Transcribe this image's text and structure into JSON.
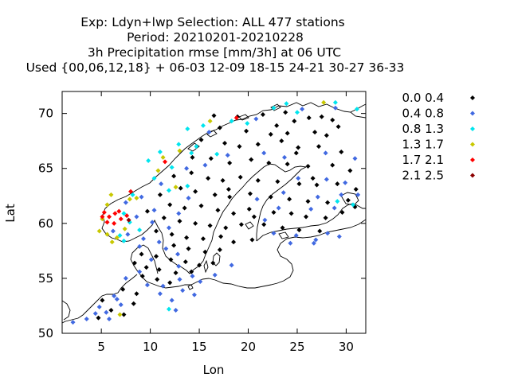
{
  "chart_data": {
    "type": "scatter",
    "title_lines": [
      "Exp: Ldyn+lwp   Selection: ALL    477 stations",
      "Period: 20210201-20210228",
      "3h Precipitation rmse [mm/3h] at  06 UTC",
      "Used {00,06,12,18} + 06-03 12-09 18-15 24-21 30-27 36-33"
    ],
    "xlabel": "Lon",
    "ylabel": "Lat",
    "xlim": [
      1,
      32
    ],
    "ylim": [
      50,
      72
    ],
    "xticks": [
      5,
      10,
      15,
      20,
      25,
      30
    ],
    "yticks": [
      50,
      55,
      60,
      65,
      70
    ],
    "legend_position": "right",
    "series": [
      {
        "name": "0.0 0.4",
        "color": "#000000",
        "points": [
          [
            16.5,
            69.8
          ],
          [
            18.9,
            69.7
          ],
          [
            21.5,
            69.9
          ],
          [
            23.8,
            70.1
          ],
          [
            24.7,
            69.3
          ],
          [
            26.2,
            69.6
          ],
          [
            27.5,
            69.7
          ],
          [
            28.6,
            69.4
          ],
          [
            29.2,
            68.8
          ],
          [
            19.8,
            68.4
          ],
          [
            22.3,
            68.1
          ],
          [
            24.0,
            68.2
          ],
          [
            26.8,
            68.3
          ],
          [
            28.0,
            68.0
          ],
          [
            15.2,
            67.6
          ],
          [
            17.6,
            67.3
          ],
          [
            19.1,
            67.0
          ],
          [
            21.0,
            67.2
          ],
          [
            23.4,
            67.5
          ],
          [
            25.1,
            66.9
          ],
          [
            27.2,
            67.0
          ],
          [
            29.5,
            66.5
          ],
          [
            14.3,
            66.0
          ],
          [
            16.2,
            65.9
          ],
          [
            18.1,
            65.5
          ],
          [
            20.3,
            65.8
          ],
          [
            22.1,
            65.5
          ],
          [
            24.0,
            65.4
          ],
          [
            26.1,
            65.2
          ],
          [
            28.6,
            65.3
          ],
          [
            30.4,
            64.8
          ],
          [
            12.4,
            64.3
          ],
          [
            14.2,
            64.6
          ],
          [
            15.9,
            64.1
          ],
          [
            17.4,
            63.9
          ],
          [
            19.2,
            64.2
          ],
          [
            21.0,
            63.9
          ],
          [
            23.0,
            63.8
          ],
          [
            25.2,
            63.6
          ],
          [
            27.0,
            63.5
          ],
          [
            29.1,
            63.6
          ],
          [
            31.0,
            63.1
          ],
          [
            13.1,
            63.2
          ],
          [
            14.6,
            62.9
          ],
          [
            16.6,
            62.6
          ],
          [
            18.1,
            62.4
          ],
          [
            20.2,
            62.7
          ],
          [
            22.3,
            62.4
          ],
          [
            24.2,
            62.2
          ],
          [
            26.1,
            62.0
          ],
          [
            28.1,
            61.9
          ],
          [
            30.2,
            62.1
          ],
          [
            12.0,
            61.7
          ],
          [
            13.5,
            61.4
          ],
          [
            15.2,
            61.6
          ],
          [
            16.9,
            61.2
          ],
          [
            18.5,
            60.9
          ],
          [
            20.1,
            61.3
          ],
          [
            22.6,
            61.0
          ],
          [
            24.4,
            60.9
          ],
          [
            25.9,
            60.6
          ],
          [
            27.9,
            60.5
          ],
          [
            29.6,
            61.0
          ],
          [
            11.4,
            60.5
          ],
          [
            13.0,
            60.2
          ],
          [
            14.6,
            60.0
          ],
          [
            16.1,
            59.8
          ],
          [
            17.7,
            59.6
          ],
          [
            19.3,
            59.9
          ],
          [
            21.6,
            59.9
          ],
          [
            23.5,
            59.6
          ],
          [
            25.2,
            59.4
          ],
          [
            27.3,
            59.3
          ],
          [
            10.6,
            59.3
          ],
          [
            12.2,
            59.0
          ],
          [
            13.7,
            58.7
          ],
          [
            15.4,
            58.6
          ],
          [
            17.2,
            58.8
          ],
          [
            18.5,
            58.3
          ],
          [
            20.4,
            58.5
          ],
          [
            12.4,
            58.0
          ],
          [
            13.9,
            57.7
          ],
          [
            15.6,
            57.4
          ],
          [
            17.1,
            57.6
          ],
          [
            9.1,
            57.2
          ],
          [
            10.6,
            57.0
          ],
          [
            12.1,
            56.7
          ],
          [
            13.6,
            56.5
          ],
          [
            15.0,
            56.2
          ],
          [
            16.4,
            56.4
          ],
          [
            8.4,
            56.4
          ],
          [
            9.6,
            56.0
          ],
          [
            10.9,
            55.8
          ],
          [
            12.6,
            55.5
          ],
          [
            14.2,
            55.6
          ],
          [
            9.2,
            55.2
          ],
          [
            10.7,
            54.9
          ],
          [
            12.0,
            54.6
          ],
          [
            7.2,
            54.0
          ],
          [
            8.6,
            53.6
          ],
          [
            5.1,
            53.0
          ],
          [
            6.0,
            52.1
          ],
          [
            7.3,
            51.7
          ],
          [
            4.7,
            51.4
          ],
          [
            8.3,
            52.7
          ],
          [
            18.0,
            63.1
          ],
          [
            20.6,
            60.6
          ],
          [
            11.0,
            62.6
          ],
          [
            26.6,
            64.1
          ],
          [
            24.9,
            66.4
          ],
          [
            22.9,
            68.9
          ],
          [
            17.1,
            68.7
          ],
          [
            30.9,
            61.5
          ],
          [
            9.7,
            61.1
          ]
        ]
      },
      {
        "name": "0.4 0.8",
        "color": "#4169e1",
        "points": [
          [
            20.8,
            69.5
          ],
          [
            25.5,
            70.4
          ],
          [
            28.9,
            70.5
          ],
          [
            16.0,
            68.3
          ],
          [
            17.9,
            66.2
          ],
          [
            21.6,
            66.4
          ],
          [
            23.7,
            66.0
          ],
          [
            27.9,
            66.4
          ],
          [
            30.9,
            65.9
          ],
          [
            13.7,
            65.0
          ],
          [
            15.6,
            65.3
          ],
          [
            25.1,
            64.1
          ],
          [
            28.0,
            64.0
          ],
          [
            29.9,
            63.7
          ],
          [
            11.1,
            63.6
          ],
          [
            13.9,
            62.3
          ],
          [
            20.9,
            62.2
          ],
          [
            23.6,
            62.8
          ],
          [
            27.1,
            62.4
          ],
          [
            29.5,
            62.6
          ],
          [
            31.2,
            62.6
          ],
          [
            7.5,
            61.9
          ],
          [
            9.1,
            62.4
          ],
          [
            10.4,
            61.2
          ],
          [
            12.9,
            60.9
          ],
          [
            21.7,
            60.3
          ],
          [
            23.1,
            61.4
          ],
          [
            26.4,
            61.3
          ],
          [
            28.8,
            61.4
          ],
          [
            8.6,
            60.6
          ],
          [
            10.2,
            60.1
          ],
          [
            11.9,
            59.6
          ],
          [
            24.9,
            58.9
          ],
          [
            26.7,
            58.2
          ],
          [
            6.2,
            59.3
          ],
          [
            7.7,
            59.0
          ],
          [
            9.3,
            58.6
          ],
          [
            10.9,
            58.3
          ],
          [
            11.6,
            57.7
          ],
          [
            8.9,
            57.9
          ],
          [
            12.8,
            57.2
          ],
          [
            10.1,
            56.7
          ],
          [
            12.9,
            56.1
          ],
          [
            14.3,
            55.2
          ],
          [
            9.7,
            54.4
          ],
          [
            11.3,
            54.3
          ],
          [
            13.0,
            54.9
          ],
          [
            7.5,
            55.0
          ],
          [
            6.3,
            53.4
          ],
          [
            7.0,
            52.6
          ],
          [
            5.5,
            51.9
          ],
          [
            4.4,
            51.8
          ],
          [
            5.8,
            51.3
          ],
          [
            3.5,
            51.3
          ],
          [
            4.8,
            52.4
          ],
          [
            6.6,
            53.1
          ],
          [
            2.1,
            51.0
          ],
          [
            8.9,
            55.6
          ],
          [
            13.3,
            53.9
          ],
          [
            15.1,
            54.7
          ],
          [
            16.6,
            55.3
          ],
          [
            18.3,
            56.2
          ],
          [
            12.2,
            53.0
          ],
          [
            14.5,
            53.5
          ],
          [
            11.0,
            53.6
          ],
          [
            12.6,
            52.1
          ],
          [
            22.6,
            59.1
          ],
          [
            24.3,
            58.2
          ],
          [
            26.9,
            58.5
          ],
          [
            28.1,
            59.1
          ],
          [
            29.3,
            58.8
          ]
        ]
      },
      {
        "name": "0.8 1.3",
        "color": "#00e5ee",
        "points": [
          [
            13.8,
            68.6
          ],
          [
            15.4,
            68.9
          ],
          [
            18.3,
            69.3
          ],
          [
            22.6,
            70.5
          ],
          [
            23.9,
            70.9
          ],
          [
            28.9,
            71.0
          ],
          [
            31.1,
            70.4
          ],
          [
            12.9,
            67.2
          ],
          [
            14.7,
            67.0
          ],
          [
            11.0,
            66.5
          ],
          [
            16.8,
            66.3
          ],
          [
            9.8,
            65.7
          ],
          [
            12.2,
            65.1
          ],
          [
            14.2,
            66.4
          ],
          [
            10.4,
            64.1
          ],
          [
            11.9,
            63.0
          ],
          [
            13.8,
            63.4
          ],
          [
            8.2,
            62.6
          ],
          [
            7.3,
            60.9
          ],
          [
            7.9,
            60.1
          ],
          [
            8.9,
            59.4
          ],
          [
            7.3,
            58.4
          ],
          [
            6.9,
            58.9
          ],
          [
            29.1,
            62.0
          ],
          [
            30.7,
            61.7
          ],
          [
            25.0,
            70.1
          ],
          [
            19.9,
            69.1
          ],
          [
            11.9,
            52.2
          ]
        ]
      },
      {
        "name": "1.3 1.7",
        "color": "#c8c800",
        "points": [
          [
            16.1,
            69.3
          ],
          [
            27.7,
            71.0
          ],
          [
            11.3,
            66.0
          ],
          [
            13.0,
            66.6
          ],
          [
            10.8,
            64.8
          ],
          [
            12.6,
            63.3
          ],
          [
            8.6,
            62.3
          ],
          [
            7.9,
            62.2
          ],
          [
            6.0,
            62.6
          ],
          [
            5.6,
            61.7
          ],
          [
            5.1,
            60.4
          ],
          [
            4.8,
            59.3
          ],
          [
            5.6,
            59.0
          ],
          [
            6.6,
            58.7
          ],
          [
            7.4,
            59.5
          ],
          [
            6.1,
            58.3
          ],
          [
            6.9,
            51.7
          ]
        ]
      },
      {
        "name": "1.7 2.1",
        "color": "#ff0000",
        "points": [
          [
            18.8,
            69.6
          ],
          [
            11.5,
            65.6
          ],
          [
            8.0,
            62.9
          ],
          [
            5.3,
            61.0
          ],
          [
            5.8,
            60.6
          ],
          [
            6.4,
            60.9
          ],
          [
            7.0,
            60.4
          ],
          [
            6.8,
            61.1
          ],
          [
            7.6,
            60.7
          ],
          [
            5.6,
            60.1
          ],
          [
            6.3,
            60.0
          ],
          [
            5.1,
            60.6
          ]
        ]
      },
      {
        "name": "2.1 2.5",
        "color": "#8b0000",
        "points": [
          [
            7.8,
            60.3
          ]
        ]
      }
    ]
  }
}
